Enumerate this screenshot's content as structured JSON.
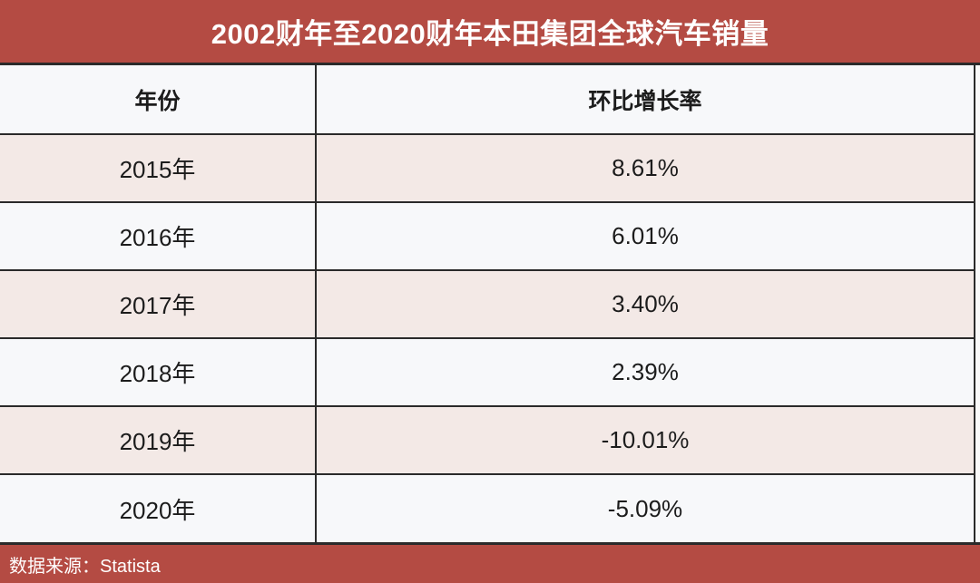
{
  "title": "2002财年至2020财年本田集团全球汽车销量",
  "table": {
    "columns": [
      "年份",
      "环比增长率"
    ],
    "rows": [
      {
        "year": "2015年",
        "growth": "8.61%"
      },
      {
        "year": "2016年",
        "growth": "6.01%"
      },
      {
        "year": "2017年",
        "growth": "3.40%"
      },
      {
        "year": "2018年",
        "growth": "2.39%"
      },
      {
        "year": "2019年",
        "growth": "-10.01%"
      },
      {
        "year": "2020年",
        "growth": "-5.09%"
      }
    ]
  },
  "footer": {
    "text": "数据来源：Statista"
  },
  "colors": {
    "accent_red": "#b44b43",
    "row_pink": "#f3e9e6",
    "row_white": "#f7f8fa",
    "border_dark": "#2a2a2a"
  },
  "chart_data": {
    "type": "table",
    "title": "2002财年至2020财年本田集团全球汽车销量",
    "columns": [
      "年份",
      "环比增长率"
    ],
    "categories": [
      "2015年",
      "2016年",
      "2017年",
      "2018年",
      "2019年",
      "2020年"
    ],
    "values": [
      8.61,
      6.01,
      3.4,
      2.39,
      -10.01,
      -5.09
    ],
    "value_unit": "%",
    "source": "数据来源：Statista"
  }
}
